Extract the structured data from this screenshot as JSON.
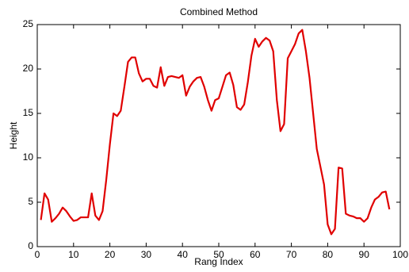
{
  "chart_data": {
    "type": "line",
    "title": "Combined Method",
    "x_label": "Rang Index",
    "y_label": "Height",
    "x": [
      1,
      2,
      3,
      4,
      5,
      6,
      7,
      8,
      9,
      10,
      11,
      12,
      13,
      14,
      15,
      16,
      17,
      18,
      19,
      20,
      21,
      22,
      23,
      24,
      25,
      26,
      27,
      28,
      29,
      30,
      31,
      32,
      33,
      34,
      35,
      36,
      37,
      38,
      39,
      40,
      41,
      42,
      43,
      44,
      45,
      46,
      47,
      48,
      49,
      50,
      51,
      52,
      53,
      54,
      55,
      56,
      57,
      58,
      59,
      60,
      61,
      62,
      63,
      64,
      65,
      66,
      67,
      68,
      69,
      70,
      71,
      72,
      73,
      74,
      75,
      76,
      77,
      78,
      79,
      80,
      81,
      82,
      83,
      84,
      85,
      86,
      87,
      88,
      89,
      90,
      91,
      92,
      93,
      94,
      95,
      96,
      97
    ],
    "series": [
      {
        "name": "Height",
        "color": "#e00000",
        "values": [
          3.0,
          6.0,
          5.3,
          2.8,
          3.2,
          3.7,
          4.4,
          4.0,
          3.4,
          2.9,
          3.0,
          3.3,
          3.3,
          3.3,
          6.0,
          3.5,
          3.0,
          4.0,
          7.5,
          11.5,
          15.0,
          14.7,
          15.3,
          18.0,
          20.8,
          21.3,
          21.3,
          19.5,
          18.6,
          18.9,
          18.9,
          18.1,
          17.9,
          20.2,
          18.1,
          19.1,
          19.2,
          19.1,
          19.0,
          19.3,
          17.0,
          18.0,
          18.6,
          19.0,
          19.1,
          18.0,
          16.5,
          15.3,
          16.5,
          16.7,
          18.0,
          19.3,
          19.6,
          18.2,
          15.7,
          15.4,
          16.0,
          18.5,
          21.5,
          23.4,
          22.5,
          23.1,
          23.5,
          23.2,
          22.0,
          16.5,
          13.0,
          13.8,
          21.2,
          22.0,
          22.8,
          24.0,
          24.4,
          22.0,
          19.0,
          15.0,
          11.0,
          9.0,
          7.0,
          2.5,
          1.4,
          2.0,
          8.9,
          8.8,
          3.7,
          3.5,
          3.4,
          3.2,
          3.2,
          2.8,
          3.2,
          4.4,
          5.3,
          5.6,
          6.1,
          6.2,
          4.2
        ]
      }
    ],
    "xlim": [
      0,
      100
    ],
    "xticks": [
      0,
      10,
      20,
      30,
      40,
      50,
      60,
      70,
      80,
      90,
      100
    ],
    "ylim": [
      0,
      25
    ],
    "yticks": [
      0,
      5,
      10,
      15,
      20,
      25
    ]
  }
}
